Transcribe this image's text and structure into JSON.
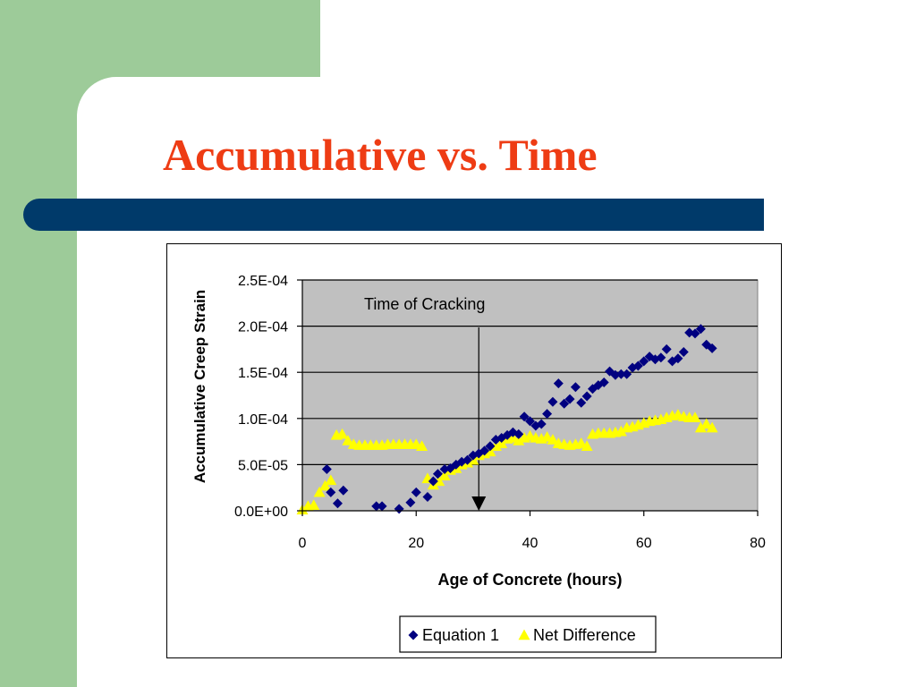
{
  "slide": {
    "title": "Accumulative vs. Time",
    "colors": {
      "title": "#ee3c14",
      "accent_bar": "#003a6a",
      "side_panel": "#9dcb99"
    }
  },
  "chart_data": {
    "type": "scatter",
    "title": "",
    "xlabel": "Age of Concrete (hours)",
    "ylabel": "Accumulative Creep Strain",
    "xlim": [
      0,
      80
    ],
    "ylim": [
      0,
      0.00025
    ],
    "x_ticks": [
      0,
      20,
      40,
      60,
      80
    ],
    "y_ticks": [
      0,
      5e-05,
      0.0001,
      0.00015,
      0.0002,
      0.00025
    ],
    "x_tick_labels": [
      "0",
      "20",
      "40",
      "60",
      "80"
    ],
    "y_tick_labels": [
      "0.0E+00",
      "5.0E-05",
      "1.0E-04",
      "1.5E-04",
      "2.0E-04",
      "2.5E-04"
    ],
    "grid": "horizontal",
    "plot_background": "#c0c0c0",
    "legend_position": "bottom",
    "annotation": {
      "text": "Time of Cracking",
      "x": 31
    },
    "series": [
      {
        "name": "Equation 1",
        "marker": "diamond",
        "color": "#000080",
        "points": [
          [
            4.3,
            4.5e-05
          ],
          [
            5,
            2e-05
          ],
          [
            6.2,
            8e-06
          ],
          [
            7.2,
            2.2e-05
          ],
          [
            13,
            5e-06
          ],
          [
            14,
            5e-06
          ],
          [
            17,
            2e-06
          ],
          [
            19,
            9e-06
          ],
          [
            20,
            2e-05
          ],
          [
            22,
            1.5e-05
          ],
          [
            23,
            3.2e-05
          ],
          [
            23.8,
            4e-05
          ],
          [
            25,
            4.5e-05
          ],
          [
            26,
            4.6e-05
          ],
          [
            27,
            5e-05
          ],
          [
            28,
            5.3e-05
          ],
          [
            29,
            5.5e-05
          ],
          [
            30,
            6e-05
          ],
          [
            31,
            6.2e-05
          ],
          [
            32,
            6.5e-05
          ],
          [
            33,
            7e-05
          ],
          [
            34,
            7.7e-05
          ],
          [
            35,
            7.9e-05
          ],
          [
            36,
            8.2e-05
          ],
          [
            37,
            8.5e-05
          ],
          [
            38,
            8.3e-05
          ],
          [
            39,
            0.000102
          ],
          [
            40,
            9.7e-05
          ],
          [
            41,
            9.2e-05
          ],
          [
            42,
            9.4e-05
          ],
          [
            43,
            0.000105
          ],
          [
            44,
            0.000118
          ],
          [
            45,
            0.000138
          ],
          [
            46,
            0.000116
          ],
          [
            47,
            0.000121
          ],
          [
            48,
            0.000134
          ],
          [
            49,
            0.000117
          ],
          [
            50,
            0.000124
          ],
          [
            51,
            0.000132
          ],
          [
            52,
            0.000136
          ],
          [
            53,
            0.000139
          ],
          [
            54,
            0.000151
          ],
          [
            55,
            0.000147
          ],
          [
            56,
            0.000148
          ],
          [
            57,
            0.000148
          ],
          [
            58,
            0.000155
          ],
          [
            59,
            0.000157
          ],
          [
            60,
            0.000162
          ],
          [
            61,
            0.000167
          ],
          [
            62,
            0.000164
          ],
          [
            63,
            0.000166
          ],
          [
            64,
            0.000175
          ],
          [
            65,
            0.000162
          ],
          [
            66,
            0.000165
          ],
          [
            67,
            0.000172
          ],
          [
            68,
            0.000193
          ],
          [
            69,
            0.000192
          ],
          [
            70,
            0.000197
          ],
          [
            71,
            0.00018
          ],
          [
            72,
            0.000176
          ]
        ]
      },
      {
        "name": "Net Difference",
        "marker": "triangle",
        "color": "#ffff00",
        "points": [
          [
            0,
            1e-06
          ],
          [
            1,
            5e-06
          ],
          [
            2,
            6e-06
          ],
          [
            3,
            2e-05
          ],
          [
            4,
            2.7e-05
          ],
          [
            5,
            3.3e-05
          ],
          [
            6,
            8.2e-05
          ],
          [
            7,
            8.3e-05
          ],
          [
            8,
            7.6e-05
          ],
          [
            9,
            7.2e-05
          ],
          [
            10,
            7.1e-05
          ],
          [
            11,
            7.1e-05
          ],
          [
            12,
            7.1e-05
          ],
          [
            13,
            7.1e-05
          ],
          [
            14,
            7.1e-05
          ],
          [
            15,
            7.2e-05
          ],
          [
            16,
            7.2e-05
          ],
          [
            17,
            7.2e-05
          ],
          [
            18,
            7.2e-05
          ],
          [
            19,
            7.2e-05
          ],
          [
            20,
            7.2e-05
          ],
          [
            21,
            7e-05
          ],
          [
            22,
            3.5e-05
          ],
          [
            23,
            2.8e-05
          ],
          [
            24,
            3.2e-05
          ],
          [
            25,
            3.8e-05
          ],
          [
            26,
            4.4e-05
          ],
          [
            27,
            4.6e-05
          ],
          [
            28,
            5e-05
          ],
          [
            29,
            5.2e-05
          ],
          [
            30,
            5.5e-05
          ],
          [
            31,
            6e-05
          ],
          [
            32,
            6.2e-05
          ],
          [
            33,
            6.4e-05
          ],
          [
            34,
            7e-05
          ],
          [
            35,
            7.3e-05
          ],
          [
            36,
            7.8e-05
          ],
          [
            37,
            7.9e-05
          ],
          [
            38,
            7.6e-05
          ],
          [
            39,
            7.9e-05
          ],
          [
            40,
            8.1e-05
          ],
          [
            41,
            7.9e-05
          ],
          [
            42,
            7.8e-05
          ],
          [
            43,
            8e-05
          ],
          [
            44,
            7.7e-05
          ],
          [
            45,
            7.3e-05
          ],
          [
            46,
            7.2e-05
          ],
          [
            47,
            7.1e-05
          ],
          [
            48,
            7.2e-05
          ],
          [
            49,
            7.3e-05
          ],
          [
            50,
            7e-05
          ],
          [
            51,
            8.3e-05
          ],
          [
            52,
            8.4e-05
          ],
          [
            53,
            8.4e-05
          ],
          [
            54,
            8.4e-05
          ],
          [
            55,
            8.5e-05
          ],
          [
            56,
            8.6e-05
          ],
          [
            57,
            9e-05
          ],
          [
            58,
            9.1e-05
          ],
          [
            59,
            9.3e-05
          ],
          [
            60,
            9.5e-05
          ],
          [
            61,
            9.7e-05
          ],
          [
            62,
            9.8e-05
          ],
          [
            63,
            9.9e-05
          ],
          [
            64,
            0.000101
          ],
          [
            65,
            0.000103
          ],
          [
            66,
            0.000104
          ],
          [
            67,
            0.000102
          ],
          [
            68,
            0.000101
          ],
          [
            69,
            0.000101
          ],
          [
            70,
            9e-05
          ],
          [
            71,
            9.4e-05
          ],
          [
            72,
            9e-05
          ]
        ]
      }
    ]
  }
}
